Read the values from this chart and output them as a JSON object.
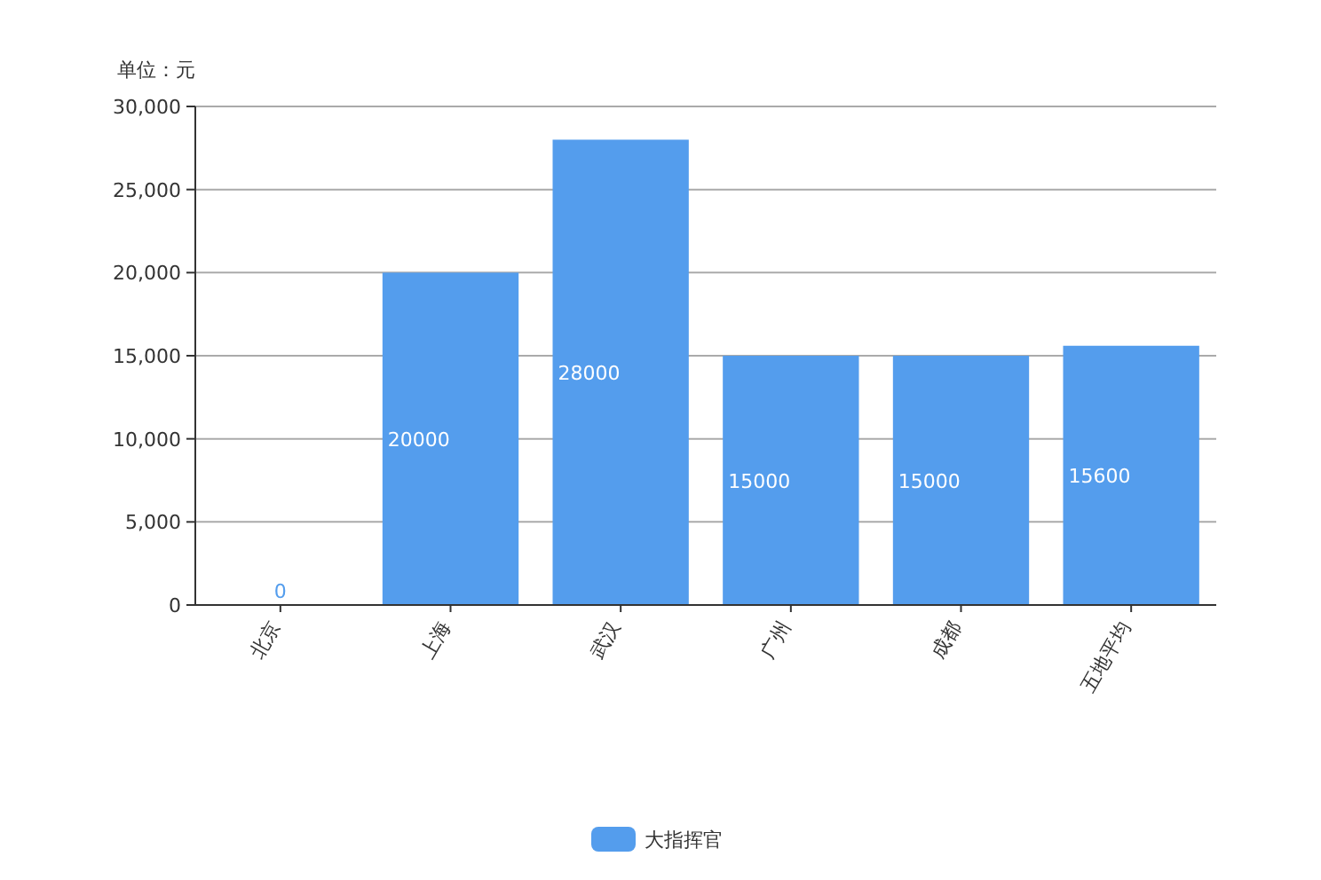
{
  "chart_data": {
    "type": "bar",
    "ylabel": "单位：元",
    "categories": [
      "北京",
      "上海",
      "武汉",
      "广州",
      "成都",
      "五地平均"
    ],
    "series": [
      {
        "name": "大指挥官",
        "color": "#549ded",
        "values": [
          0,
          20000,
          28000,
          15000,
          15000,
          15600
        ]
      }
    ],
    "ylim": [
      0,
      30000
    ],
    "yticks": [
      {
        "value": 0,
        "label": "0"
      },
      {
        "value": 5000,
        "label": "5,000"
      },
      {
        "value": 10000,
        "label": "10,000"
      },
      {
        "value": 15000,
        "label": "15,000"
      },
      {
        "value": 20000,
        "label": "20,000"
      },
      {
        "value": 25000,
        "label": "25,000"
      },
      {
        "value": 30000,
        "label": "30,000"
      }
    ],
    "grid": "y",
    "data_labels": true,
    "legend": "bottom"
  }
}
